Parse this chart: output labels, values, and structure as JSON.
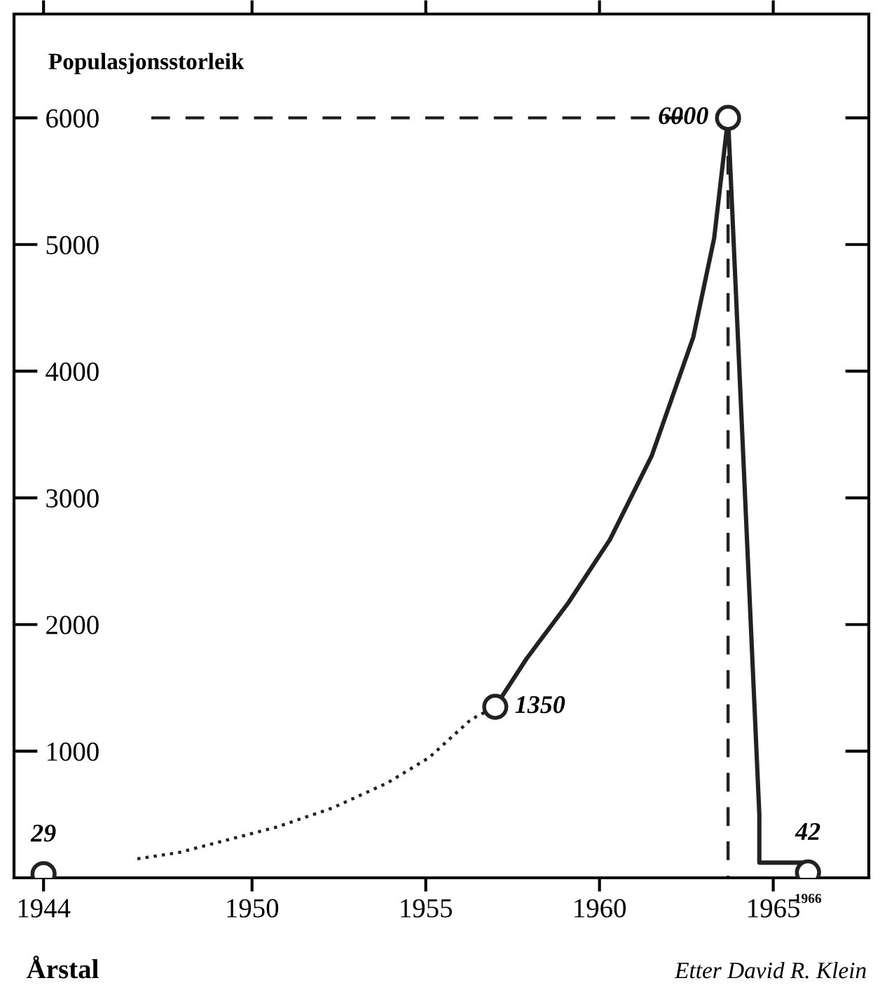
{
  "chart_data": {
    "type": "line",
    "ylabel": "Populasjonsstorleik",
    "xlabel": "Årstal",
    "annotations": [
      "Etter David R. Klein",
      {
        "text": "1966",
        "x": 1966,
        "y": 0
      }
    ],
    "series": [
      {
        "color": "#222222",
        "line_style": "dotted",
        "marker": "none",
        "x": [
          1946.7,
          1947.9,
          1949.3,
          1950.7,
          1952.3,
          1953.9,
          1955.1,
          1956.3,
          1957
        ],
        "values": [
          150,
          200,
          300,
          400,
          550,
          750,
          950,
          1250,
          1350
        ]
      },
      {
        "color": "#222222",
        "line_style": "solid",
        "marker": "none",
        "x": [
          1957,
          1957.9,
          1959.1,
          1960.3,
          1961.5,
          1962.7,
          1963.3,
          1963.7,
          1964.6,
          1964.6,
          1966
        ],
        "values": [
          1350,
          1730,
          2170,
          2670,
          3330,
          4270,
          5050,
          6000,
          500,
          120,
          120
        ]
      },
      {
        "color": "#222222",
        "line_style": "dashed",
        "marker": "none",
        "x": [
          1947.1,
          1962.4,
          1963,
          1963.7,
          1963.7
        ],
        "values": [
          6000,
          6000,
          null,
          5700,
          0
        ]
      },
      {
        "type": "scatter",
        "color": "#222222",
        "marker": "circle",
        "x": [
          1944,
          1957,
          1963.7,
          1966
        ],
        "values": [
          29,
          1350,
          6000,
          42
        ],
        "value_labels": [
          "29",
          "1350",
          "6000",
          "42"
        ]
      }
    ],
    "xlim": [
      1943.15,
      1967.75
    ],
    "ylim": [
      0,
      6820
    ],
    "xticks": [
      1944,
      1950,
      1955,
      1960,
      1965
    ],
    "yticks": [
      1000,
      2000,
      3000,
      4000,
      5000,
      6000
    ],
    "grid": false,
    "legend": false
  }
}
